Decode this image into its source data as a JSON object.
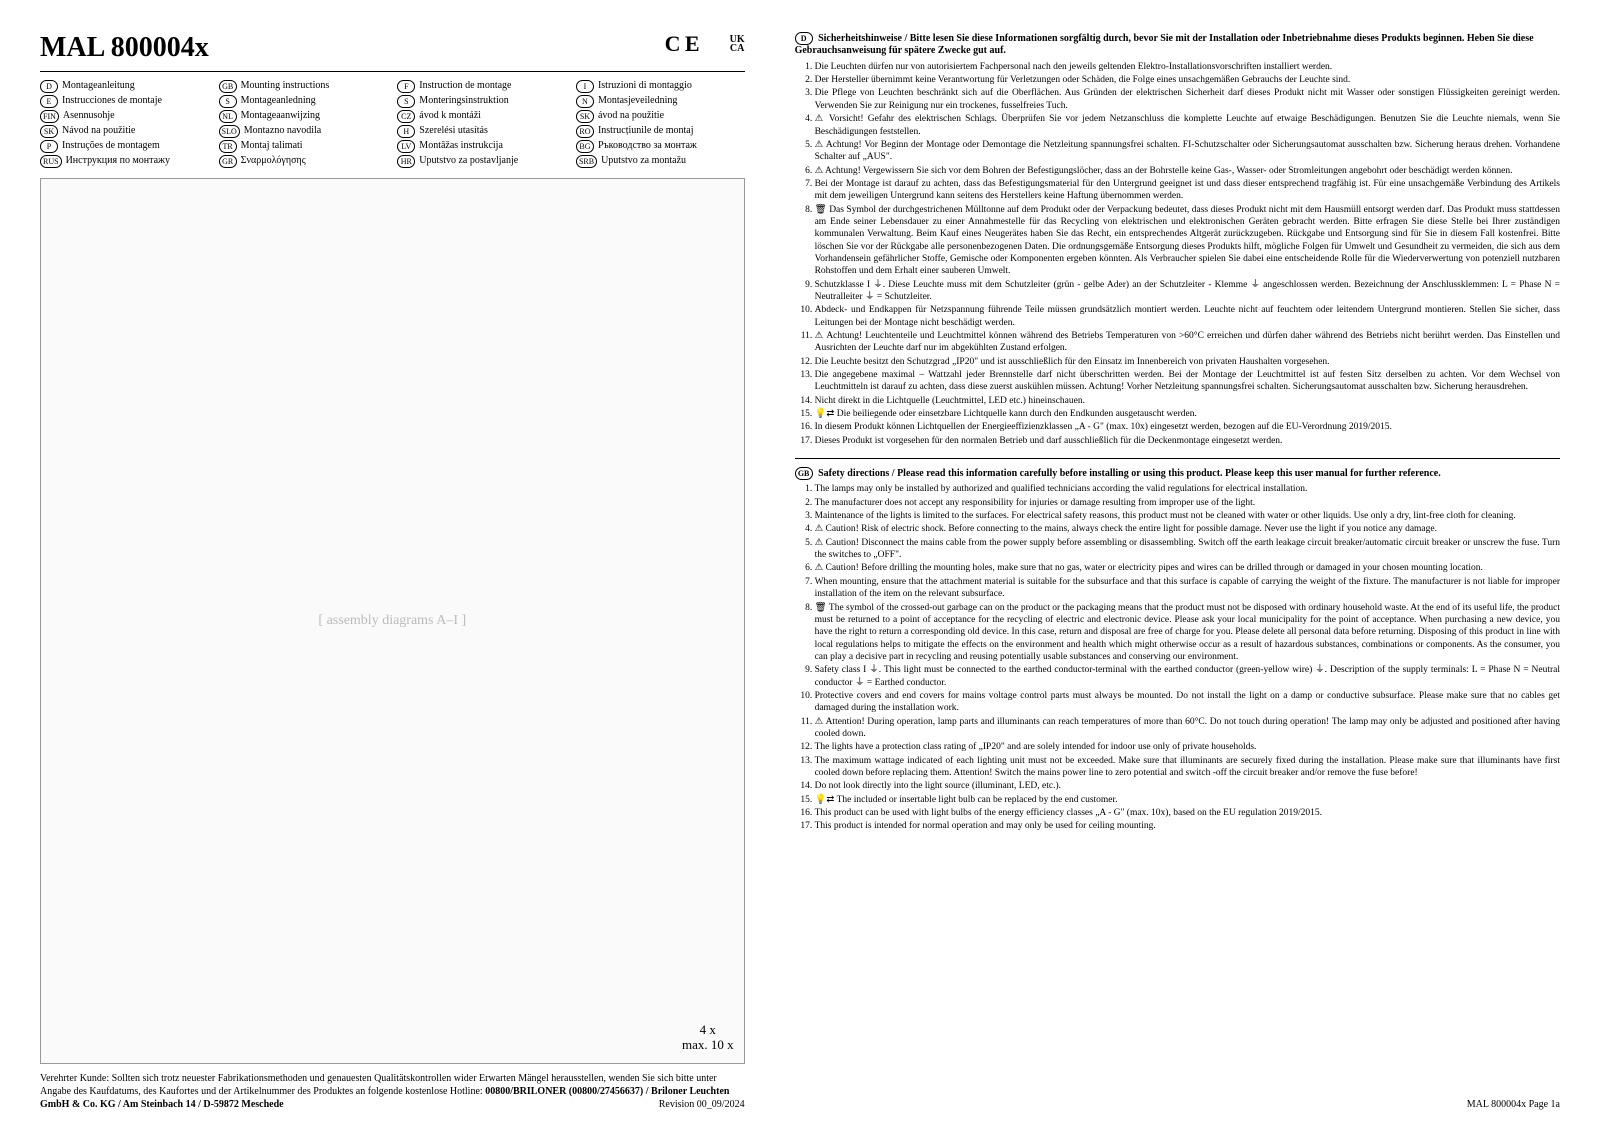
{
  "header": {
    "title": "MAL 800004x",
    "ce_mark": "C E",
    "ukca_top": "UK",
    "ukca_bottom": "CA"
  },
  "languages": [
    {
      "code": "D",
      "label": "Montageanleitung"
    },
    {
      "code": "GB",
      "label": "Mounting instructions"
    },
    {
      "code": "F",
      "label": "Instruction de montage"
    },
    {
      "code": "I",
      "label": "Istruzioni di montaggio"
    },
    {
      "code": "E",
      "label": "Instrucciones de montaje"
    },
    {
      "code": "S",
      "label": "Montageanledning"
    },
    {
      "code": "S",
      "label": "Monteringsinstruktion"
    },
    {
      "code": "N",
      "label": "Montasjeveiledning"
    },
    {
      "code": "FIN",
      "label": "Asennusohje"
    },
    {
      "code": "NL",
      "label": "Montageaanwijzing"
    },
    {
      "code": "CZ",
      "label": "ávod k montáži"
    },
    {
      "code": "SK",
      "label": "ávod na použitie"
    },
    {
      "code": "SK",
      "label": "Návod na použitie"
    },
    {
      "code": "SLO",
      "label": "Montazno navodila"
    },
    {
      "code": "H",
      "label": "Szerelési utasítás"
    },
    {
      "code": "RO",
      "label": "Instrucțiunile de montaj"
    },
    {
      "code": "P",
      "label": "Instruções de montagem"
    },
    {
      "code": "TR",
      "label": "Montaj talimati"
    },
    {
      "code": "LV",
      "label": "Montāžas instrukcija"
    },
    {
      "code": "BG",
      "label": "Ръководство за монтаж"
    },
    {
      "code": "RUS",
      "label": "Инструкция по монтажу"
    },
    {
      "code": "GR",
      "label": "Σναρμολόγησης"
    },
    {
      "code": "HR",
      "label": "Uputstvo za postavljanje"
    },
    {
      "code": "SRB",
      "label": "Uputstvo za montažu"
    }
  ],
  "diagram": {
    "placeholder": "[ assembly diagrams A–I ]",
    "callout_line1": "4 x",
    "callout_line2": "max. 10 x"
  },
  "footer_left": {
    "text1": "Verehrter Kunde: Sollten sich trotz neuester Fabrikationsmethoden und genauesten Qualitätskontrollen wider Erwarten Mängel herausstellen, wenden Sie sich bitte unter Angabe des Kaufdatums, des Kaufortes und der Artikelnummer des Produktes an folgende kostenlose Hotline: ",
    "hotline": "00800/BRILONER (00800/27456637) / Briloner Leuchten GmbH & Co. KG / Am Steinbach 14 / D-59872 Meschede",
    "revision": "Revision 00_09/2024"
  },
  "section_de": {
    "icon": "D",
    "title": "Sicherheitshinweise / Bitte lesen Sie diese Informationen sorgfältig durch, bevor Sie mit der Installation oder Inbetriebnahme dieses Produkts beginnen. Heben Sie diese Gebrauchsanweisung für spätere Zwecke gut auf.",
    "items": [
      "Die Leuchten dürfen nur von autorisiertem Fachpersonal nach den jeweils geltenden Elektro-Installationsvorschriften installiert werden.",
      "Der Hersteller übernimmt keine Verantwortung für Verletzungen oder Schäden, die Folge eines unsachgemäßen Gebrauchs der Leuchte sind.",
      "Die Pflege von Leuchten beschränkt sich auf die Oberflächen. Aus Gründen der elektrischen Sicherheit darf dieses Produkt nicht mit Wasser oder sonstigen Flüssigkeiten gereinigt werden. Verwenden Sie zur Reinigung nur ein trockenes, fusselfreies Tuch.",
      "⚠ Vorsicht! Gefahr des elektrischen Schlags. Überprüfen Sie vor jedem Netzanschluss die komplette Leuchte auf etwaige Beschädigungen. Benutzen Sie die Leuchte niemals, wenn Sie Beschädigungen feststellen.",
      "⚠ Achtung! Vor Beginn der Montage oder Demontage die Netzleitung spannungsfrei schalten. FI-Schutzschalter oder Sicherungsautomat ausschalten bzw. Sicherung heraus drehen. Vorhandene Schalter auf „AUS\".",
      "⚠ Achtung! Vergewissern Sie sich vor dem Bohren der Befestigungslöcher, dass an der Bohrstelle keine Gas-, Wasser- oder Stromleitungen angebohrt oder beschädigt werden können.",
      "Bei der Montage ist darauf zu achten, dass das Befestigungsmaterial für den Untergrund geeignet ist und dass dieser entsprechend tragfähig ist. Für eine unsachgemäße Verbindung des Artikels mit dem jeweiligen Untergrund kann seitens des Herstellers keine Haftung übernommen werden.",
      "🗑 Das Symbol der durchgestrichenen Mülltonne auf dem Produkt oder der Verpackung bedeutet, dass dieses Produkt nicht mit dem Hausmüll entsorgt werden darf. Das Produkt muss stattdessen am Ende seiner Lebensdauer zu einer Annahmestelle für das Recycling von elektrischen und elektronischen Geräten gebracht werden. Bitte erfragen Sie diese Stelle bei Ihrer zuständigen kommunalen Verwaltung. Beim Kauf eines Neugerätes haben Sie das Recht, ein entsprechendes Altgerät zurückzugeben. Rückgabe und Entsorgung sind für Sie in diesem Fall kostenfrei. Bitte löschen Sie vor der Rückgabe alle personenbezogenen Daten. Die ordnungsgemäße Entsorgung dieses Produkts hilft, mögliche Folgen für Umwelt und Gesundheit zu vermeiden, die sich aus dem Vorhandensein gefährlicher Stoffe, Gemische oder Komponenten ergeben könnten. Als Verbraucher spielen Sie dabei eine entscheidende Rolle für die Wiederverwertung von potenziell nutzbaren Rohstoffen und dem Erhalt einer sauberen Umwelt.",
      "Schutzklasse I ⏚. Diese Leuchte muss mit dem Schutzleiter (grün - gelbe Ader) an der Schutzleiter - Klemme ⏚ angeschlossen werden. Bezeichnung der Anschlussklemmen: L = Phase N = Neutralleiter ⏚ = Schutzleiter.",
      "Abdeck- und Endkappen für Netzspannung führende Teile müssen grundsätzlich montiert werden. Leuchte nicht auf feuchtem oder leitendem Untergrund montieren. Stellen Sie sicher, dass Leitungen bei der Montage nicht beschädigt werden.",
      "⚠ Achtung! Leuchtenteile und Leuchtmittel können während des Betriebs Temperaturen von >60°C erreichen und dürfen daher während des Betriebs nicht berührt werden. Das Einstellen und Ausrichten der Leuchte darf nur im abgekühlten Zustand erfolgen.",
      "Die Leuchte besitzt den Schutzgrad „IP20\" und ist ausschließlich für den Einsatz im Innenbereich von privaten Haushalten vorgesehen.",
      "Die angegebene maximal – Wattzahl jeder Brennstelle darf nicht überschritten werden. Bei der Montage der Leuchtmittel ist auf festen Sitz derselben zu achten. Vor dem Wechsel von Leuchtmitteln ist darauf zu achten, dass diese zuerst auskühlen müssen. Achtung! Vorher Netzleitung spannungsfrei schalten. Sicherungsautomat ausschalten bzw. Sicherung herausdrehen.",
      "Nicht direkt in die Lichtquelle (Leuchtmittel, LED etc.) hineinschauen.",
      "💡⇄ Die beiliegende oder einsetzbare Lichtquelle kann durch den Endkunden ausgetauscht werden.",
      "In diesem Produkt können Lichtquellen der Energieeffizienzklassen „A - G\" (max. 10x) eingesetzt werden, bezogen auf die EU-Verordnung 2019/2015.",
      "Dieses Produkt ist vorgesehen für den normalen Betrieb und darf ausschließlich für die Deckenmontage eingesetzt werden."
    ]
  },
  "section_en": {
    "icon": "GB",
    "title": "Safety directions / Please read this information carefully before installing or using this product. Please keep this user manual for further reference.",
    "items": [
      "The lamps may only be installed by authorized and qualified technicians according the valid regulations for electrical installation.",
      "The manufacturer does not accept any responsibility for injuries or damage resulting from improper use of the light.",
      "Maintenance of the lights is limited to the surfaces. For electrical safety reasons, this product must not be cleaned with water or other liquids. Use only a dry, lint-free cloth for cleaning.",
      "⚠ Caution! Risk of electric shock. Before connecting to the mains, always check the entire light for possible damage. Never use the light if you notice any damage.",
      "⚠ Caution! Disconnect the mains cable from the power supply before assembling or disassembling. Switch off the earth leakage circuit breaker/automatic circuit breaker or unscrew the fuse. Turn the switches to „OFF\".",
      "⚠ Caution! Before drilling the mounting holes, make sure that no gas, water or electricity pipes and wires can be drilled through or damaged in your chosen mounting location.",
      "When mounting, ensure that the attachment material is suitable for the subsurface and that this surface is capable of carrying the weight of the fixture. The manufacturer is not liable for improper installation of the item on the relevant subsurface.",
      "🗑 The symbol of the crossed-out garbage can on the product or the packaging means that the product must not be disposed with ordinary household waste. At the end of its useful life, the product must be returned to a point of acceptance for the recycling of electric and electronic device. Please ask your local municipality for the point of acceptance. When purchasing a new device, you have the right to return a corresponding old device. In this case, return and disposal are free of charge for you. Please delete all personal data before returning. Disposing of this product in line with local regulations helps to mitigate the effects on the environment and health which might otherwise occur as a result of hazardous substances, combinations or components. As the consumer, you can play a decisive part in recycling and reusing potentially usable substances and conserving our environment.",
      "Safety class I ⏚. This light must be connected to the earthed conductor-terminal with the earthed conductor (green-yellow wire) ⏚. Description of the supply terminals: L = Phase N = Neutral conductor ⏚ = Earthed conductor.",
      "Protective covers and end covers for mains voltage control parts must always be mounted. Do not install the light on a damp or conductive subsurface. Please make sure that no cables get damaged during the installation work.",
      "⚠ Attention! During operation, lamp parts and illuminants can reach temperatures of more than 60°C. Do not touch during operation! The lamp may only be adjusted and positioned after having cooled down.",
      "The lights have a protection class rating of „IP20\" and are solely intended for indoor use only of private households.",
      "The maximum wattage indicated of each lighting unit must not be exceeded. Make sure that illuminants are securely fixed during the installation. Please make sure that illuminants have first cooled down before replacing them. Attention! Switch the mains power line to zero potential and switch -off the circuit breaker and/or remove the fuse before!",
      "Do not look directly into the light source (illuminant, LED, etc.).",
      "💡⇄ The included or insertable light bulb can be replaced by the end customer.",
      "This product can be used with light bulbs of the energy efficiency classes „A - G\" (max. 10x), based on the EU regulation 2019/2015.",
      "This product is intended for normal operation and may only be used for ceiling mounting."
    ]
  },
  "footer_right": "MAL 800004x  Page 1a"
}
